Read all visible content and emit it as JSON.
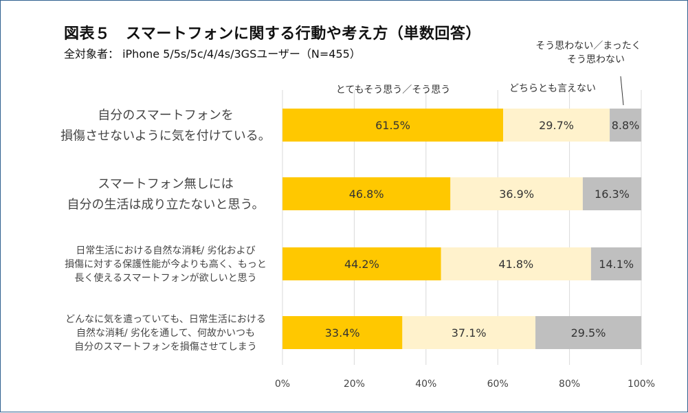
{
  "chart_data": {
    "type": "bar",
    "orientation": "horizontal",
    "stacked": true,
    "title": "図表５　スマートフォンに関する行動や考え方（単数回答）",
    "subtitle": "全対象者：  iPhone 5/5s/5c/4/4s/3GSユーザー（N=455）",
    "categories": [
      [
        "自分のスマートフォンを",
        "損傷させないように気を付けている。"
      ],
      [
        "スマートフォン無しには",
        "自分の生活は成り立たないと思う。"
      ],
      [
        "日常生活における自然な消耗/ 劣化および",
        "損傷に対する保護性能が今よりも高く、もっと",
        "長く使えるスマートフォンが欲しいと思う"
      ],
      [
        "どんなに気を遣っていても、日常生活における",
        "自然な消耗/ 劣化を通して、何故かいつも",
        "自分のスマートフォンを損傷させてしまう"
      ]
    ],
    "series": [
      {
        "name": "とてもそう思う／そう思う",
        "color": "#ffc800",
        "values": [
          61.5,
          46.8,
          44.2,
          33.4
        ]
      },
      {
        "name": "どちらとも言えない",
        "color": "#fff2cc",
        "values": [
          29.7,
          36.9,
          41.8,
          37.1
        ]
      },
      {
        "name": "そう思わない／まったくそう思わない",
        "legend_lines": [
          "そう思わない／まったく",
          "そう思わない"
        ],
        "color": "#bfbfbf",
        "values": [
          8.8,
          16.3,
          14.1,
          29.5
        ]
      }
    ],
    "value_labels": [
      [
        "61.5%",
        "29.7%",
        "8.8%"
      ],
      [
        "46.8%",
        "36.9%",
        "16.3%"
      ],
      [
        "44.2%",
        "41.8%",
        "14.1%"
      ],
      [
        "33.4%",
        "37.1%",
        "29.5%"
      ]
    ],
    "xlim": [
      0,
      100
    ],
    "xticks": [
      0,
      20,
      40,
      60,
      80,
      100
    ],
    "xtick_labels": [
      "0%",
      "20%",
      "40%",
      "60%",
      "80%",
      "100%"
    ],
    "grid": "vertical",
    "legend": "above-bars"
  }
}
